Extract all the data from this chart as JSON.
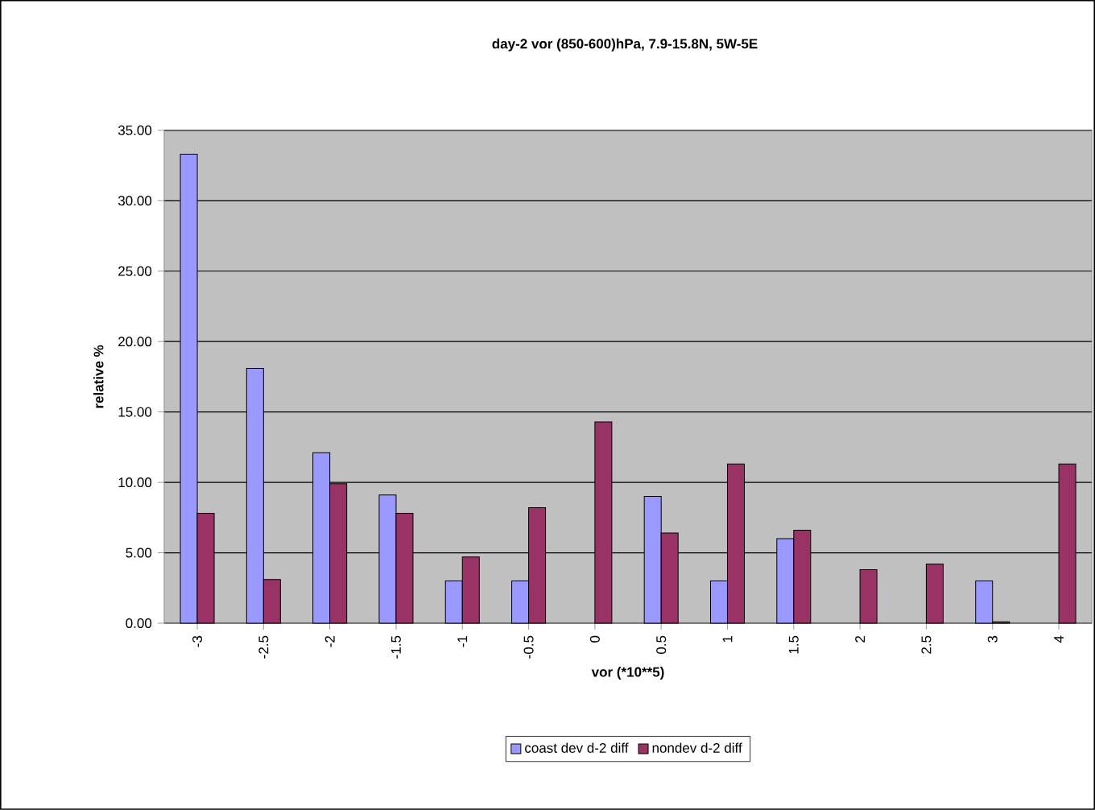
{
  "chart_data": {
    "type": "bar",
    "title": "day-2 vor (850-600)hPa, 7.9-15.8N, 5W-5E",
    "xlabel": "vor (*10**5)",
    "ylabel": "relative %",
    "categories": [
      "-3",
      "-2.5",
      "-2",
      "-1.5",
      "-1",
      "-0.5",
      "0",
      "0.5",
      "1",
      "1.5",
      "2",
      "2.5",
      "3",
      "4"
    ],
    "series": [
      {
        "name": "coast dev d-2 diff",
        "color": "#9999ff",
        "values": [
          33.3,
          18.1,
          12.1,
          9.1,
          3.0,
          3.0,
          null,
          9.0,
          3.0,
          6.0,
          null,
          null,
          3.0,
          null
        ]
      },
      {
        "name": "nondev d-2 diff",
        "color": "#993366",
        "values": [
          7.8,
          3.1,
          9.9,
          7.8,
          4.7,
          8.2,
          14.3,
          6.4,
          11.3,
          6.6,
          3.8,
          4.2,
          0.1,
          11.3
        ]
      }
    ],
    "ylim": [
      0,
      35
    ],
    "yticks": [
      {
        "value": 0,
        "label": "0.00"
      },
      {
        "value": 5,
        "label": "5.00"
      },
      {
        "value": 10,
        "label": "10.00"
      },
      {
        "value": 15,
        "label": "15.00"
      },
      {
        "value": 20,
        "label": "20.00"
      },
      {
        "value": 25,
        "label": "25.00"
      },
      {
        "value": 30,
        "label": "30.00"
      },
      {
        "value": 35,
        "label": "35.00"
      }
    ],
    "grid": "y",
    "legend": "bottom"
  }
}
